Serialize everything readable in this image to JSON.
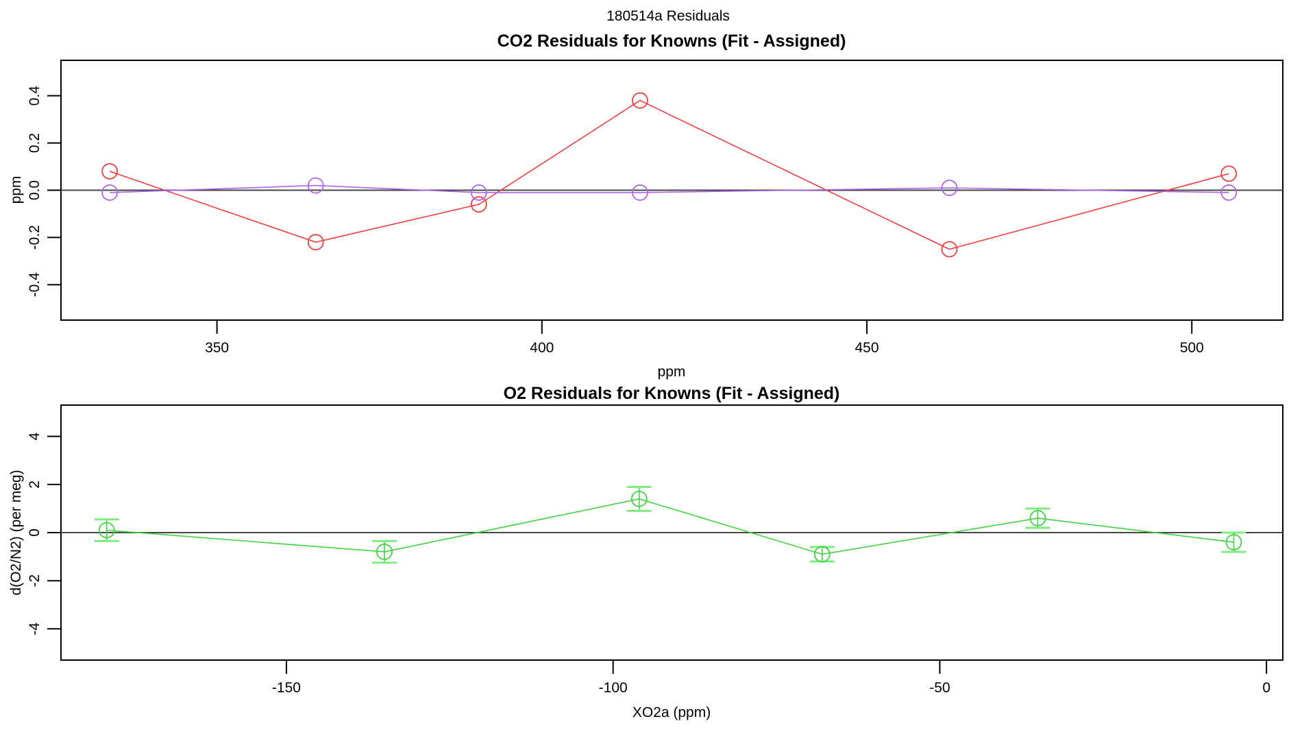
{
  "figure": {
    "title": "180514a  Residuals",
    "background": "#ffffff",
    "zero_line_color": "#454545",
    "border_color": "#000000"
  },
  "chart_data": [
    {
      "id": "co2-residuals",
      "type": "line",
      "title": "CO2 Residuals for Knowns (Fit - Assigned)",
      "xlabel": "ppm",
      "ylabel": "ppm",
      "xlim": [
        326,
        514
      ],
      "ylim": [
        -0.55,
        0.55
      ],
      "xticks": [
        350,
        400,
        450,
        500
      ],
      "yticks": [
        -0.4,
        -0.2,
        0.0,
        0.2,
        0.4
      ],
      "ytick_labels": [
        "-0.4",
        "-0.2",
        "0.0",
        "0.2",
        "0.4"
      ],
      "grid": false,
      "zero_line": true,
      "legend": "none",
      "series": [
        {
          "name": "co2-residual-red",
          "color": "#f03c3c",
          "marker": "open-circle",
          "x": [
            333.5,
            365.2,
            390.3,
            415.1,
            462.7,
            505.7
          ],
          "y": [
            0.08,
            -0.22,
            -0.06,
            0.38,
            -0.25,
            0.07
          ]
        },
        {
          "name": "co2-residual-purple",
          "color": "#ad63ea",
          "marker": "open-circle",
          "x": [
            333.5,
            365.2,
            390.3,
            415.1,
            462.7,
            505.7
          ],
          "y": [
            -0.01,
            0.02,
            -0.01,
            -0.01,
            0.01,
            -0.01
          ]
        }
      ]
    },
    {
      "id": "o2-residuals",
      "type": "line",
      "title": "O2 Residuals for Knowns (Fit - Assigned)",
      "xlabel": "XO2a (ppm)",
      "ylabel": "d(O2/N2) (per meg)",
      "xlim": [
        -184.5,
        2.5
      ],
      "ylim": [
        -5.3,
        5.3
      ],
      "xticks": [
        -150,
        -100,
        -50,
        0
      ],
      "yticks": [
        -4,
        -2,
        0,
        2,
        4
      ],
      "ytick_labels": [
        "-4",
        "-2",
        "0",
        "2",
        "4"
      ],
      "grid": false,
      "zero_line": true,
      "legend": "none",
      "series": [
        {
          "name": "o2-residual-green",
          "color": "#3ed43e",
          "cap_color": "#7dec7d",
          "marker": "open-circle",
          "x": [
            -177.5,
            -135,
            -96,
            -68,
            -35,
            -5
          ],
          "y": [
            0.1,
            -0.8,
            1.4,
            -0.9,
            0.6,
            -0.4
          ],
          "error": [
            0.45,
            0.45,
            0.5,
            0.3,
            0.4,
            0.4
          ]
        }
      ]
    }
  ]
}
